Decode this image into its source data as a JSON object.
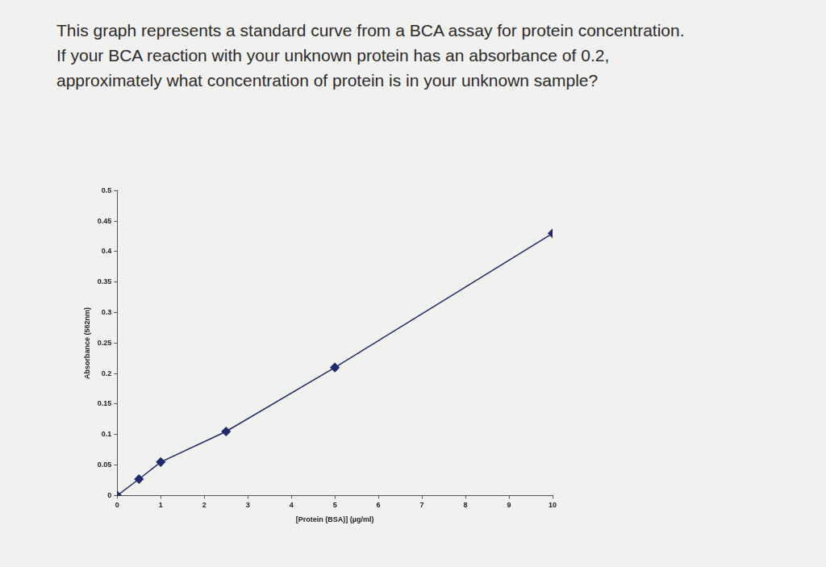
{
  "question": [
    "This graph represents a standard curve from a BCA assay for protein concentration.",
    "If your BCA reaction with your unknown protein has an absorbance of 0.2,",
    "approximately what concentration of protein is in your unknown sample?"
  ],
  "chart_data": {
    "type": "scatter",
    "x_label": "[Protein (BSA)] (µg/ml)",
    "y_label": "Absorbance (562nm)",
    "series": [
      {
        "color": "#1f2a6b",
        "marker": "diamond",
        "line_style": "solid",
        "x": [
          0,
          0.5,
          1,
          2.5,
          5,
          10
        ],
        "values": [
          0,
          0.027,
          0.055,
          0.105,
          0.21,
          0.43
        ]
      }
    ],
    "xlim": [
      0,
      10
    ],
    "xticks": [
      0,
      1,
      2,
      3,
      4,
      5,
      6,
      7,
      8,
      9,
      10
    ],
    "ylim": [
      0,
      0.5
    ],
    "yticks": [
      0,
      0.05,
      0.1,
      0.15,
      0.2,
      0.25,
      0.3,
      0.35,
      0.4,
      0.45,
      0.5
    ],
    "grid": false
  }
}
